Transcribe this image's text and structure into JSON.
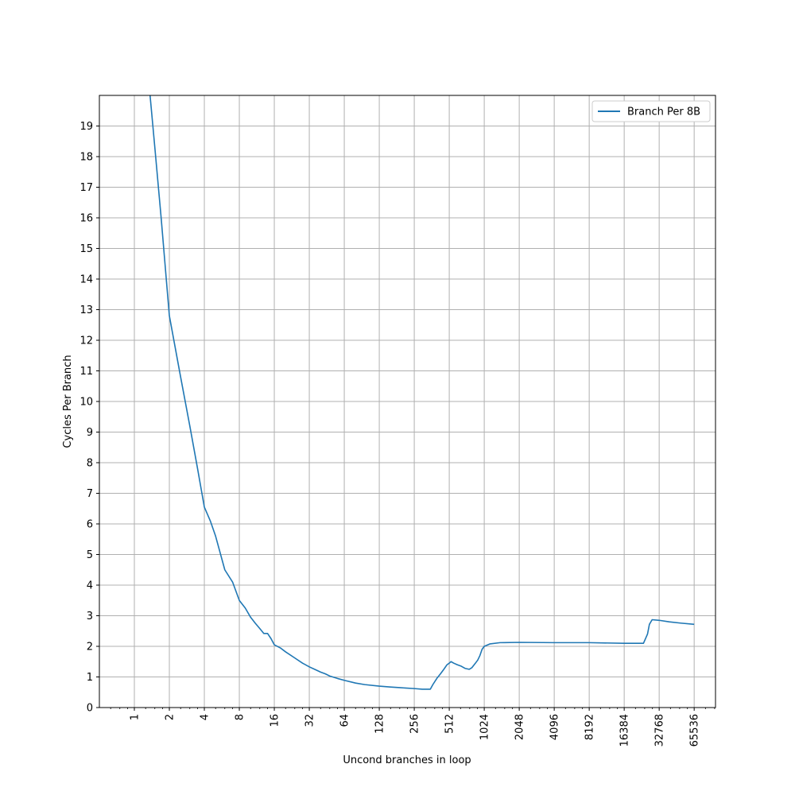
{
  "chart_data": {
    "type": "line",
    "title": "",
    "xlabel": "Uncond branches in loop",
    "ylabel": "Cycles Per Branch",
    "x_scale": "log2",
    "xlim": [
      0.5,
      100000
    ],
    "ylim": [
      0,
      20
    ],
    "x_ticks": [
      1,
      2,
      4,
      8,
      16,
      32,
      64,
      128,
      256,
      512,
      1024,
      2048,
      4096,
      8192,
      16384,
      32768,
      65536
    ],
    "x_tick_labels": [
      "1",
      "2",
      "4",
      "8",
      "16",
      "32",
      "64",
      "128",
      "256",
      "512",
      "1024",
      "2048",
      "4096",
      "8192",
      "16384",
      "32768",
      "65536"
    ],
    "y_ticks": [
      0,
      1,
      2,
      3,
      4,
      5,
      6,
      7,
      8,
      9,
      10,
      11,
      12,
      13,
      14,
      15,
      16,
      17,
      18,
      19
    ],
    "y_tick_labels": [
      "0",
      "1",
      "2",
      "3",
      "4",
      "5",
      "6",
      "7",
      "8",
      "9",
      "10",
      "11",
      "12",
      "13",
      "14",
      "15",
      "16",
      "17",
      "18",
      "19"
    ],
    "grid": true,
    "legend_position": "top-right",
    "colors": {
      "series": "#1f77b4",
      "grid": "#b0b0b0",
      "axis": "#000000"
    },
    "series": [
      {
        "name": "Branch Per 8B",
        "points": [
          [
            1.35,
            20.2
          ],
          [
            1.5,
            18.3
          ],
          [
            1.7,
            16.0
          ],
          [
            2,
            12.8
          ],
          [
            2.5,
            10.8
          ],
          [
            3,
            9.2
          ],
          [
            3.5,
            7.8
          ],
          [
            4,
            6.55
          ],
          [
            4.5,
            6.1
          ],
          [
            5,
            5.6
          ],
          [
            6,
            4.5
          ],
          [
            7,
            4.1
          ],
          [
            8,
            3.5
          ],
          [
            9,
            3.25
          ],
          [
            10,
            2.95
          ],
          [
            11,
            2.75
          ],
          [
            12,
            2.58
          ],
          [
            13,
            2.42
          ],
          [
            14,
            2.42
          ],
          [
            15,
            2.25
          ],
          [
            16,
            2.05
          ],
          [
            18,
            1.95
          ],
          [
            20,
            1.82
          ],
          [
            24,
            1.62
          ],
          [
            28,
            1.45
          ],
          [
            32,
            1.33
          ],
          [
            36,
            1.24
          ],
          [
            40,
            1.16
          ],
          [
            44,
            1.1
          ],
          [
            48,
            1.03
          ],
          [
            56,
            0.95
          ],
          [
            64,
            0.89
          ],
          [
            80,
            0.8
          ],
          [
            96,
            0.75
          ],
          [
            128,
            0.7
          ],
          [
            160,
            0.67
          ],
          [
            192,
            0.65
          ],
          [
            256,
            0.62
          ],
          [
            300,
            0.6
          ],
          [
            340,
            0.6
          ],
          [
            352,
            0.6
          ],
          [
            370,
            0.75
          ],
          [
            400,
            0.95
          ],
          [
            430,
            1.1
          ],
          [
            460,
            1.25
          ],
          [
            490,
            1.4
          ],
          [
            512,
            1.45
          ],
          [
            530,
            1.5
          ],
          [
            560,
            1.45
          ],
          [
            600,
            1.4
          ],
          [
            650,
            1.35
          ],
          [
            700,
            1.28
          ],
          [
            760,
            1.25
          ],
          [
            800,
            1.3
          ],
          [
            860,
            1.45
          ],
          [
            900,
            1.55
          ],
          [
            940,
            1.7
          ],
          [
            980,
            1.9
          ],
          [
            1024,
            2.0
          ],
          [
            1150,
            2.08
          ],
          [
            1400,
            2.12
          ],
          [
            2048,
            2.13
          ],
          [
            4096,
            2.12
          ],
          [
            8192,
            2.12
          ],
          [
            16384,
            2.1
          ],
          [
            24000,
            2.1
          ],
          [
            26000,
            2.4
          ],
          [
            27000,
            2.72
          ],
          [
            28500,
            2.87
          ],
          [
            32768,
            2.85
          ],
          [
            40000,
            2.8
          ],
          [
            50000,
            2.76
          ],
          [
            65536,
            2.72
          ]
        ]
      }
    ]
  }
}
